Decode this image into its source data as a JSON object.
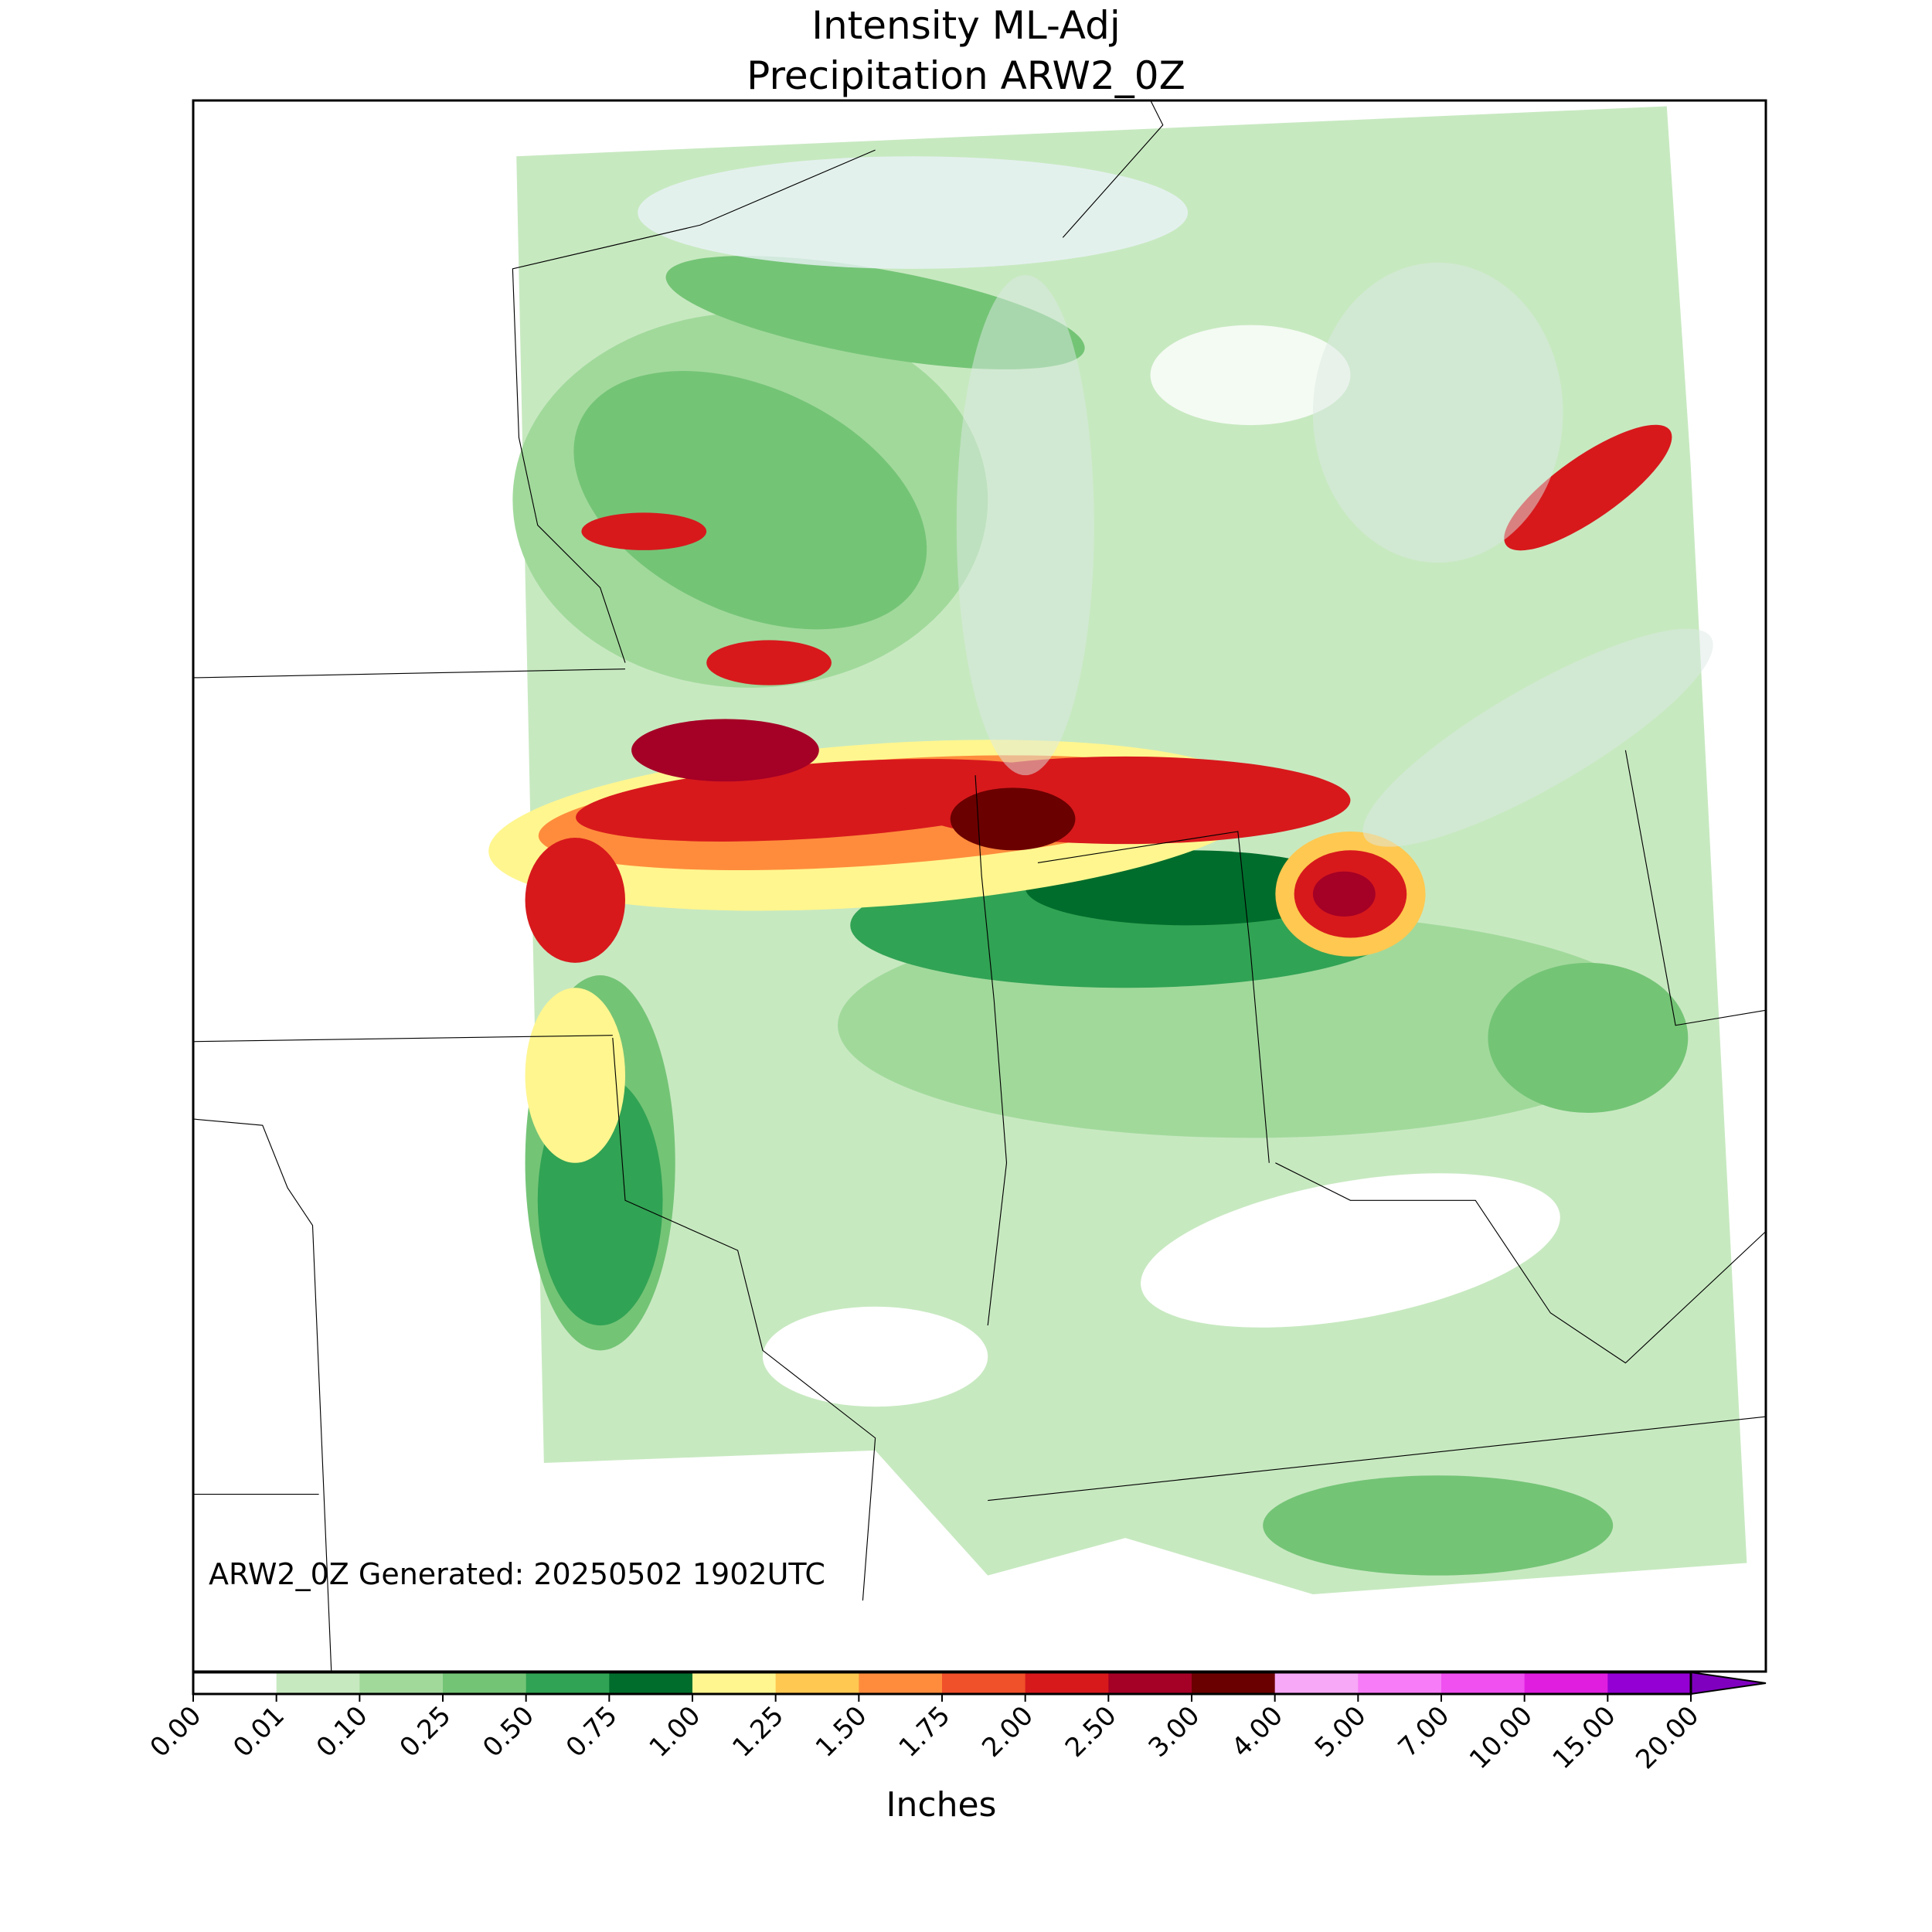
{
  "header": {
    "title_lines": [
      "Intensity ML-Adj",
      "Precipitation ARW2_0Z"
    ]
  },
  "annotation": "ARW2_0Z Generated: 20250502 1902UTC",
  "colorbar": {
    "label": "Inches",
    "ticks": [
      {
        "value": 0,
        "label": "0.00"
      },
      {
        "value": 0.01,
        "label": "0.01"
      },
      {
        "value": 0.1,
        "label": "0.10"
      },
      {
        "value": 0.25,
        "label": "0.25"
      },
      {
        "value": 0.5,
        "label": "0.50"
      },
      {
        "value": 0.75,
        "label": "0.75"
      },
      {
        "value": 1,
        "label": "1.00"
      },
      {
        "value": 1.25,
        "label": "1.25"
      },
      {
        "value": 1.5,
        "label": "1.50"
      },
      {
        "value": 1.75,
        "label": "1.75"
      },
      {
        "value": 2,
        "label": "2.00"
      },
      {
        "value": 2.5,
        "label": "2.50"
      },
      {
        "value": 3,
        "label": "3.00"
      },
      {
        "value": 4,
        "label": "4.00"
      },
      {
        "value": 5,
        "label": "5.00"
      },
      {
        "value": 7,
        "label": "7.00"
      },
      {
        "value": 10,
        "label": "10.00"
      },
      {
        "value": 15,
        "label": "15.00"
      },
      {
        "value": 20,
        "label": "20.00"
      }
    ],
    "colors": [
      "#ffffff",
      "#c7e9c0",
      "#a1d99b",
      "#74c476",
      "#31a354",
      "#006d2c",
      "#fff68f",
      "#ffc850",
      "#ff8c3c",
      "#f0502a",
      "#d7191c",
      "#a50026",
      "#6b0000",
      "#f7a8f7",
      "#f77cf7",
      "#f050f0",
      "#e01ee0",
      "#9400d3"
    ],
    "extend_color": "#8000c0"
  }
}
